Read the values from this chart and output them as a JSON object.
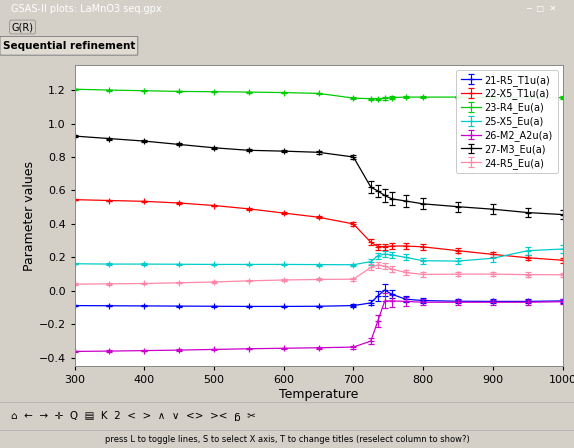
{
  "title": "Sequential refinement",
  "window_title": "GSAS-II plots: LaMnO3 seq.gpx",
  "xlabel": "Temperature",
  "ylabel": "Parameter values",
  "xlim": [
    300,
    1000
  ],
  "ylim": [
    -0.45,
    1.35
  ],
  "bg_color": "#d4d0c8",
  "plot_bg": "#ffffff",
  "plot_border": "#aaaaaa",
  "titlebar_bg": "#c8d0d8",
  "menubar_bg": "#d8d4cc",
  "tab_bg": "#e8e4dc",
  "toolbar_bg": "#d8d4cc",
  "statusbar_bg": "#d8d4cc",
  "series": [
    {
      "label": "21-R5_T1u(a)",
      "color": "#0000ff",
      "x": [
        300,
        350,
        400,
        450,
        500,
        550,
        600,
        650,
        700,
        725,
        735,
        745,
        755,
        775,
        800,
        850,
        900,
        950,
        1000
      ],
      "y": [
        -0.088,
        -0.089,
        -0.09,
        -0.091,
        -0.092,
        -0.093,
        -0.093,
        -0.092,
        -0.088,
        -0.072,
        -0.03,
        0.005,
        -0.02,
        -0.05,
        -0.058,
        -0.062,
        -0.063,
        -0.063,
        -0.06
      ],
      "yerr": [
        0.003,
        0.003,
        0.003,
        0.003,
        0.003,
        0.003,
        0.003,
        0.004,
        0.008,
        0.015,
        0.03,
        0.035,
        0.025,
        0.018,
        0.015,
        0.012,
        0.012,
        0.012,
        0.012
      ]
    },
    {
      "label": "22-X5_T1u(a)",
      "color": "#ff0000",
      "x": [
        300,
        350,
        400,
        450,
        500,
        550,
        600,
        650,
        700,
        725,
        735,
        745,
        755,
        775,
        800,
        850,
        900,
        950,
        1000
      ],
      "y": [
        0.545,
        0.54,
        0.535,
        0.525,
        0.51,
        0.49,
        0.465,
        0.44,
        0.4,
        0.29,
        0.265,
        0.265,
        0.268,
        0.268,
        0.263,
        0.24,
        0.218,
        0.198,
        0.183
      ],
      "yerr": [
        0.004,
        0.004,
        0.004,
        0.004,
        0.004,
        0.005,
        0.006,
        0.007,
        0.01,
        0.018,
        0.018,
        0.018,
        0.018,
        0.016,
        0.016,
        0.014,
        0.014,
        0.014,
        0.014
      ]
    },
    {
      "label": "23-R4_Eu(a)",
      "color": "#00cc00",
      "x": [
        300,
        350,
        400,
        450,
        500,
        550,
        600,
        650,
        700,
        725,
        735,
        745,
        755,
        775,
        800,
        850,
        900,
        950,
        1000
      ],
      "y": [
        1.205,
        1.2,
        1.196,
        1.192,
        1.19,
        1.188,
        1.185,
        1.18,
        1.152,
        1.148,
        1.148,
        1.15,
        1.155,
        1.158,
        1.158,
        1.158,
        1.155,
        1.155,
        1.155
      ],
      "yerr": [
        0.003,
        0.003,
        0.003,
        0.003,
        0.003,
        0.003,
        0.004,
        0.004,
        0.007,
        0.007,
        0.007,
        0.007,
        0.007,
        0.007,
        0.007,
        0.007,
        0.007,
        0.007,
        0.007
      ]
    },
    {
      "label": "25-X5_Eu(a)",
      "color": "#00cccc",
      "x": [
        300,
        350,
        400,
        450,
        500,
        550,
        600,
        650,
        700,
        725,
        735,
        745,
        755,
        775,
        800,
        850,
        900,
        950,
        1000
      ],
      "y": [
        0.162,
        0.16,
        0.16,
        0.159,
        0.158,
        0.158,
        0.158,
        0.157,
        0.156,
        0.175,
        0.21,
        0.22,
        0.215,
        0.2,
        0.18,
        0.178,
        0.195,
        0.24,
        0.25
      ],
      "yerr": [
        0.004,
        0.004,
        0.004,
        0.004,
        0.004,
        0.004,
        0.004,
        0.006,
        0.007,
        0.018,
        0.018,
        0.018,
        0.018,
        0.018,
        0.018,
        0.018,
        0.025,
        0.025,
        0.025
      ]
    },
    {
      "label": "26-M2_A2u(a)",
      "color": "#cc00cc",
      "x": [
        300,
        350,
        400,
        450,
        500,
        550,
        600,
        650,
        700,
        725,
        735,
        745,
        755,
        775,
        800,
        850,
        900,
        950,
        1000
      ],
      "y": [
        -0.362,
        -0.36,
        -0.357,
        -0.354,
        -0.35,
        -0.346,
        -0.343,
        -0.34,
        -0.336,
        -0.3,
        -0.18,
        -0.06,
        -0.06,
        -0.063,
        -0.068,
        -0.068,
        -0.068,
        -0.068,
        -0.065
      ],
      "yerr": [
        0.004,
        0.004,
        0.004,
        0.004,
        0.004,
        0.004,
        0.004,
        0.006,
        0.009,
        0.018,
        0.035,
        0.045,
        0.035,
        0.025,
        0.018,
        0.014,
        0.014,
        0.014,
        0.014
      ]
    },
    {
      "label": "27-M3_Eu(a)",
      "color": "#000000",
      "x": [
        300,
        350,
        400,
        450,
        500,
        550,
        600,
        650,
        700,
        725,
        735,
        745,
        755,
        775,
        800,
        850,
        900,
        950,
        1000
      ],
      "y": [
        0.925,
        0.91,
        0.895,
        0.875,
        0.855,
        0.84,
        0.835,
        0.828,
        0.8,
        0.62,
        0.597,
        0.57,
        0.55,
        0.537,
        0.52,
        0.503,
        0.488,
        0.468,
        0.456
      ],
      "yerr": [
        0.006,
        0.006,
        0.006,
        0.006,
        0.006,
        0.007,
        0.007,
        0.009,
        0.013,
        0.035,
        0.035,
        0.038,
        0.038,
        0.035,
        0.032,
        0.03,
        0.03,
        0.028,
        0.028
      ]
    },
    {
      "label": "24-R5_Eu(a)",
      "color": "#ff88aa",
      "x": [
        300,
        350,
        400,
        450,
        500,
        550,
        600,
        650,
        700,
        725,
        735,
        745,
        755,
        775,
        800,
        850,
        900,
        950,
        1000
      ],
      "y": [
        0.04,
        0.042,
        0.044,
        0.048,
        0.053,
        0.06,
        0.065,
        0.068,
        0.07,
        0.14,
        0.155,
        0.148,
        0.13,
        0.11,
        0.098,
        0.1,
        0.1,
        0.097,
        0.096
      ],
      "yerr": [
        0.004,
        0.004,
        0.004,
        0.004,
        0.004,
        0.004,
        0.004,
        0.006,
        0.009,
        0.018,
        0.018,
        0.018,
        0.018,
        0.013,
        0.013,
        0.013,
        0.013,
        0.013,
        0.013
      ]
    }
  ],
  "toolbar_icons": "⌂ ← → ✚ Q ▤ K 2 < > Λ ∨ <> >< Ħ ✂",
  "status_text": "press L to toggle lines, S to select X axis, T to change titles (reselect column to show?)"
}
